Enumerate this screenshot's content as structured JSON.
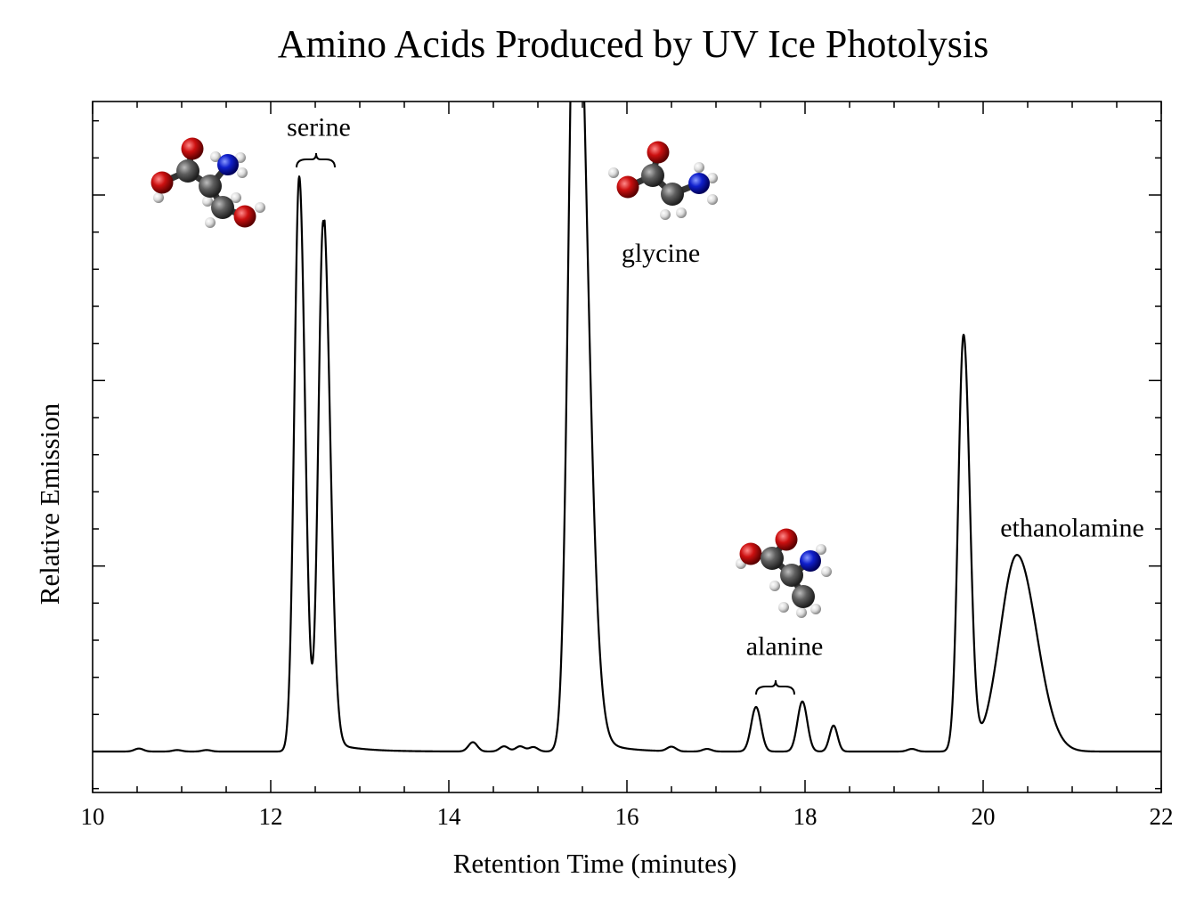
{
  "chart_data": {
    "type": "line",
    "title": "Amino Acids Produced by UV Ice Photolysis",
    "xlabel": "Retention Time (minutes)",
    "ylabel": "Relative Emission",
    "xlim": [
      10,
      22
    ],
    "ylim": [
      0,
      1.7
    ],
    "x_ticks": [
      "10",
      "12",
      "14",
      "16",
      "18",
      "20",
      "22"
    ],
    "y_tick_labels_shown": false,
    "grid": false,
    "legend": "none",
    "baseline": 0.0,
    "peaks": [
      {
        "x": 10.52,
        "y": 0.008
      },
      {
        "x": 10.95,
        "y": 0.004
      },
      {
        "x": 11.28,
        "y": 0.004
      },
      {
        "x": 12.32,
        "y": 1.55
      },
      {
        "x": 12.59,
        "y": 1.43
      },
      {
        "x": 14.27,
        "y": 0.025
      },
      {
        "x": 14.62,
        "y": 0.014
      },
      {
        "x": 14.8,
        "y": 0.014
      },
      {
        "x": 14.95,
        "y": 0.012
      },
      {
        "x": 15.42,
        "y": 2.3
      },
      {
        "x": 16.5,
        "y": 0.012
      },
      {
        "x": 16.9,
        "y": 0.007
      },
      {
        "x": 17.45,
        "y": 0.12
      },
      {
        "x": 17.97,
        "y": 0.135
      },
      {
        "x": 18.32,
        "y": 0.07
      },
      {
        "x": 19.2,
        "y": 0.007
      },
      {
        "x": 19.78,
        "y": 1.12
      },
      {
        "x": 20.38,
        "y": 0.53
      }
    ],
    "annotations": [
      {
        "text": "serine",
        "x": 12.54,
        "y": 1.66
      },
      {
        "text": "glycine",
        "x": 16.38,
        "y": 1.32
      },
      {
        "text": "alanine",
        "x": 17.77,
        "y": 0.26
      },
      {
        "text": "ethanolamine",
        "x": 21.0,
        "y": 0.58
      }
    ]
  }
}
